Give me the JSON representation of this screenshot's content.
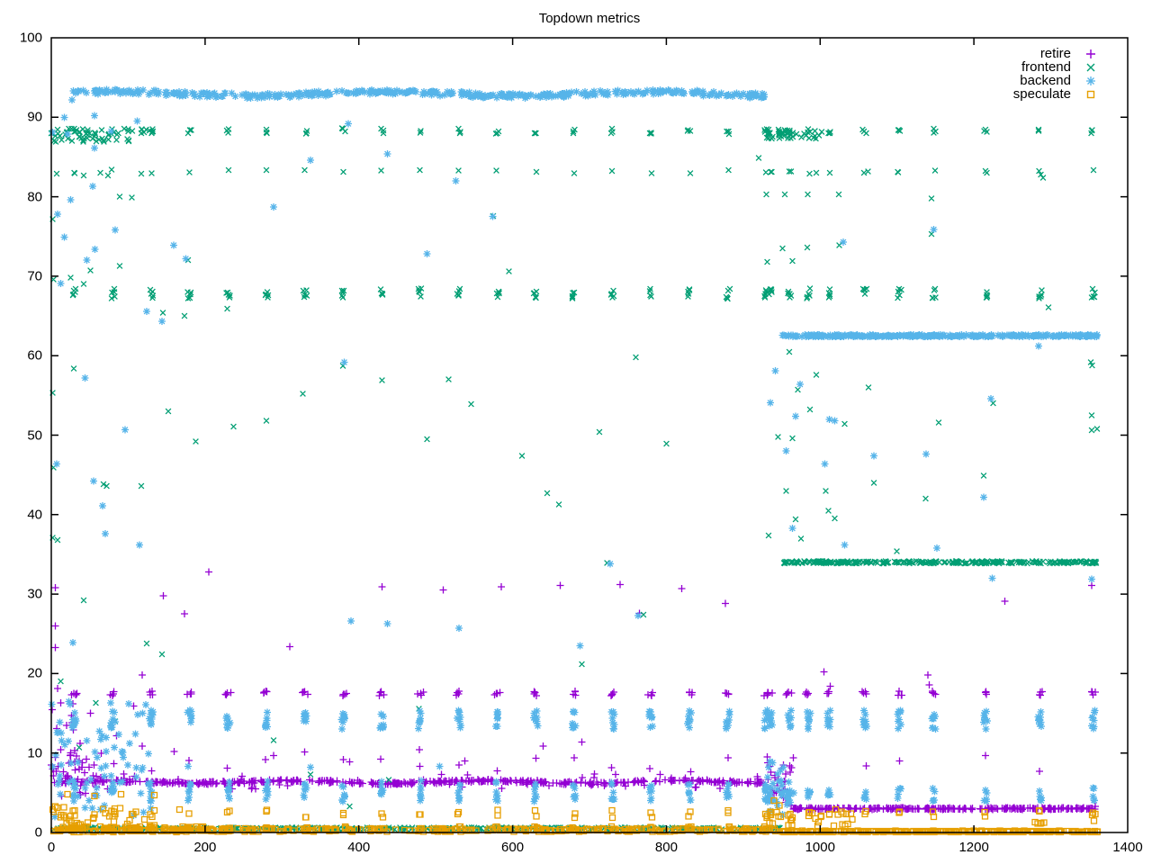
{
  "title": "Topdown metrics",
  "chart_data": {
    "type": "scatter",
    "title": "Topdown metrics",
    "xlabel": "",
    "ylabel": "",
    "xlim": [
      0,
      1400
    ],
    "ylim": [
      0,
      100
    ],
    "xticks": [
      0,
      200,
      400,
      600,
      800,
      1000,
      1200,
      1400
    ],
    "yticks": [
      0,
      10,
      20,
      30,
      40,
      50,
      60,
      70,
      80,
      90,
      100
    ],
    "grid": false,
    "legend_position": "top-right-inside",
    "border_color": "#000000",
    "phase_change_x": 935,
    "series": [
      {
        "name": "retire",
        "color": "#9400d3",
        "marker": "plus"
      },
      {
        "name": "frontend",
        "color": "#009e73",
        "marker": "cross"
      },
      {
        "name": "backend",
        "color": "#56b4e9",
        "marker": "asterisk"
      },
      {
        "name": "speculate",
        "color": "#e69f00",
        "marker": "open-square"
      }
    ],
    "cluster_x_left": [
      30,
      80,
      130,
      180,
      230,
      280,
      330,
      380,
      430,
      480,
      530,
      580,
      630,
      680,
      730,
      780,
      830,
      880,
      930
    ],
    "cluster_x_right": [
      935,
      960,
      985,
      1012,
      1058,
      1103,
      1148,
      1215,
      1286,
      1355
    ],
    "bands": [
      {
        "series": "backend",
        "x0": 27,
        "x1": 930,
        "y": 92.95,
        "jitter": 0.3,
        "wobble_amp": 0.25,
        "wobble_period": 55,
        "n": 460,
        "gap": 2
      },
      {
        "series": "backend",
        "x0": 950,
        "x1": 1362,
        "y": 62.5,
        "jitter": 0.12,
        "wobble_amp": 0,
        "wobble_period": 1,
        "n": 300,
        "gap": 0
      },
      {
        "series": "frontend",
        "x0": 952,
        "x1": 1362,
        "y": 34.0,
        "jitter": 0.14,
        "wobble_amp": 0,
        "wobble_period": 1,
        "n": 290,
        "gap": 0
      },
      {
        "series": "frontend",
        "x0": 2,
        "x1": 948,
        "y": 0.5,
        "jitter": 0.13,
        "wobble_amp": 0,
        "wobble_period": 1,
        "n": 430,
        "gap": 0
      },
      {
        "series": "retire",
        "x0": 2,
        "x1": 932,
        "y": 6.35,
        "jitter": 0.17,
        "wobble_amp": 0.15,
        "wobble_period": 40,
        "n": 470,
        "gap": 2
      },
      {
        "series": "retire",
        "x0": 963,
        "x1": 1358,
        "y": 3.0,
        "jitter": 0.1,
        "wobble_amp": 0,
        "wobble_period": 1,
        "n": 280,
        "gap": 0
      },
      {
        "series": "speculate",
        "x0": 2,
        "x1": 948,
        "y": 0.3,
        "jitter": 0.2,
        "wobble_amp": 0,
        "wobble_period": 1,
        "n": 330,
        "gap": 0
      },
      {
        "series": "speculate",
        "x0": 950,
        "x1": 1362,
        "y": 0.13,
        "jitter": 0.08,
        "wobble_amp": 0,
        "wobble_period": 1,
        "n": 300,
        "gap": 0
      }
    ],
    "dense_regions": [
      {
        "series": "frontend",
        "x0": 0,
        "x1": 104,
        "y0": 86.9,
        "y1": 88.6,
        "n": 55
      },
      {
        "series": "frontend",
        "x0": 104,
        "x1": 135,
        "y0": 87.9,
        "y1": 88.5,
        "n": 8
      },
      {
        "series": "retire",
        "x0": 0,
        "x1": 65,
        "y0": 4.6,
        "y1": 10.5,
        "n": 40
      },
      {
        "series": "retire",
        "x0": 0,
        "x1": 40,
        "y0": 10.5,
        "y1": 17.5,
        "n": 8
      },
      {
        "series": "retire",
        "x0": 0,
        "x1": 930,
        "y0": 5.4,
        "y1": 7.4,
        "n": 55
      },
      {
        "series": "backend",
        "x0": 0,
        "x1": 130,
        "y0": 1.8,
        "y1": 16.5,
        "n": 75
      },
      {
        "series": "speculate",
        "x0": 0,
        "x1": 135,
        "y0": 0.7,
        "y1": 3.2,
        "n": 40
      },
      {
        "series": "speculate",
        "x0": 0,
        "x1": 210,
        "y0": 0.05,
        "y1": 0.75,
        "n": 70
      },
      {
        "series": "retire",
        "x0": 930,
        "x1": 963,
        "y0": 3.4,
        "y1": 8.6,
        "n": 22
      },
      {
        "series": "backend",
        "x0": 928,
        "x1": 968,
        "y0": 2.0,
        "y1": 9.0,
        "n": 36
      },
      {
        "series": "speculate",
        "x0": 930,
        "x1": 1042,
        "y0": 0.8,
        "y1": 2.6,
        "n": 26
      },
      {
        "series": "speculate",
        "x0": 1278,
        "x1": 1292,
        "y0": 1.0,
        "y1": 1.3,
        "n": 6
      },
      {
        "series": "frontend",
        "x0": 928,
        "x1": 1002,
        "y0": 87.3,
        "y1": 88.5,
        "n": 38
      }
    ],
    "cluster_specs": [
      {
        "series": "retire",
        "y": 17.5,
        "yr": 0.3,
        "xr": 4,
        "n": 4,
        "where": "both"
      },
      {
        "series": "retire",
        "y": 8.9,
        "yr": 1.3,
        "xr": 2,
        "n": 1,
        "where": "left"
      },
      {
        "series": "backend",
        "y": 14.2,
        "yr": 1.2,
        "xr": 2.5,
        "n": 8,
        "where": "both"
      },
      {
        "series": "backend",
        "y": 4.8,
        "yr": 0.9,
        "xr": 2,
        "n": 5,
        "where": "both"
      },
      {
        "series": "backend",
        "y": 6.1,
        "yr": 0.4,
        "xr": 2,
        "n": 2,
        "where": "left"
      },
      {
        "series": "speculate",
        "y": 2.35,
        "yr": 0.5,
        "xr": 1.5,
        "n": 2,
        "where": "both"
      },
      {
        "series": "speculate",
        "y": 0.55,
        "yr": 0.2,
        "xr": 3,
        "n": 3,
        "where": "left"
      },
      {
        "series": "frontend",
        "y": 88.25,
        "yr": 0.35,
        "xr": 2.5,
        "n": 3,
        "where": "both"
      },
      {
        "series": "frontend",
        "y": 83.15,
        "yr": 0.25,
        "xr": 1.5,
        "n": 1,
        "where": "both"
      },
      {
        "series": "frontend",
        "y": 67.8,
        "yr": 0.65,
        "xr": 2.5,
        "n": 5,
        "where": "both"
      }
    ],
    "outliers": {
      "retire": [
        [
          5,
          30.8
        ],
        [
          5,
          26.0
        ],
        [
          5,
          23.3
        ],
        [
          8,
          18.1
        ],
        [
          12,
          16.3
        ],
        [
          28,
          16.2
        ],
        [
          51,
          15.0
        ],
        [
          107,
          15.9
        ],
        [
          85,
          12.2
        ],
        [
          118,
          19.8
        ],
        [
          146,
          29.8
        ],
        [
          173,
          27.5
        ],
        [
          205,
          32.8
        ],
        [
          310,
          23.4
        ],
        [
          430,
          30.9
        ],
        [
          510,
          30.5
        ],
        [
          585,
          30.9
        ],
        [
          662,
          31.1
        ],
        [
          740,
          31.2
        ],
        [
          820,
          30.7
        ],
        [
          765,
          27.6
        ],
        [
          877,
          28.8
        ],
        [
          479,
          10.4
        ],
        [
          289,
          9.7
        ],
        [
          388,
          8.9
        ],
        [
          538,
          9.0
        ],
        [
          640,
          10.9
        ],
        [
          690,
          11.4
        ],
        [
          118,
          10.9
        ],
        [
          12,
          10.4
        ],
        [
          23,
          8.7
        ],
        [
          36,
          8.0
        ],
        [
          160,
          10.2
        ],
        [
          1005,
          20.2
        ],
        [
          1013,
          18.4
        ],
        [
          1140,
          19.8
        ],
        [
          1142,
          18.6
        ],
        [
          1060,
          8.4
        ],
        [
          1285,
          7.7
        ],
        [
          1353,
          31.1
        ],
        [
          1103,
          9.0
        ],
        [
          965,
          9.4
        ],
        [
          1215,
          9.7
        ],
        [
          932,
          8.8
        ],
        [
          936,
          7.6
        ],
        [
          941,
          6.9
        ],
        [
          944,
          5.9
        ],
        [
          947,
          5.2
        ],
        [
          952,
          4.4
        ],
        [
          955,
          3.8
        ],
        [
          962,
          3.4
        ],
        [
          1240,
          29.1
        ],
        [
          1358,
          3.3
        ]
      ],
      "frontend": [
        [
          2,
          77.2
        ],
        [
          3,
          69.6
        ],
        [
          2,
          55.3
        ],
        [
          3,
          45.9
        ],
        [
          2,
          37.1
        ],
        [
          25,
          69.8
        ],
        [
          42,
          69.0
        ],
        [
          51,
          70.7
        ],
        [
          89,
          71.3
        ],
        [
          178,
          72.0
        ],
        [
          8,
          36.8
        ],
        [
          12,
          19.0
        ],
        [
          42,
          29.2
        ],
        [
          124,
          23.8
        ],
        [
          144,
          22.4
        ],
        [
          29,
          58.4
        ],
        [
          68,
          43.8
        ],
        [
          72,
          43.6
        ],
        [
          117,
          43.6
        ],
        [
          152,
          53.0
        ],
        [
          188,
          49.2
        ],
        [
          237,
          51.1
        ],
        [
          280,
          51.8
        ],
        [
          327,
          55.2
        ],
        [
          379,
          58.7
        ],
        [
          229,
          65.9
        ],
        [
          145,
          65.4
        ],
        [
          173,
          65.0
        ],
        [
          7,
          82.9
        ],
        [
          30,
          83.0
        ],
        [
          42,
          82.7
        ],
        [
          64,
          83.0
        ],
        [
          74,
          82.7
        ],
        [
          117,
          82.9
        ],
        [
          89,
          80.0
        ],
        [
          105,
          79.9
        ],
        [
          289,
          11.6
        ],
        [
          337,
          7.3
        ],
        [
          388,
          3.3
        ],
        [
          439,
          6.6
        ],
        [
          478,
          15.6
        ],
        [
          430,
          56.9
        ],
        [
          489,
          49.5
        ],
        [
          517,
          57.0
        ],
        [
          546,
          53.9
        ],
        [
          575,
          77.6
        ],
        [
          595,
          70.6
        ],
        [
          612,
          47.4
        ],
        [
          645,
          42.7
        ],
        [
          660,
          41.3
        ],
        [
          690,
          21.2
        ],
        [
          713,
          50.4
        ],
        [
          723,
          33.9
        ],
        [
          760,
          59.8
        ],
        [
          800,
          48.9
        ],
        [
          770,
          27.4
        ],
        [
          58,
          16.3
        ],
        [
          83,
          14.0
        ],
        [
          36,
          10.7
        ],
        [
          960,
          60.5
        ],
        [
          995,
          57.6
        ],
        [
          971,
          55.7
        ],
        [
          987,
          53.2
        ],
        [
          1032,
          51.4
        ],
        [
          945,
          49.8
        ],
        [
          964,
          49.6
        ],
        [
          956,
          43.0
        ],
        [
          1007,
          43.0
        ],
        [
          1011,
          40.5
        ],
        [
          1019,
          39.5
        ],
        [
          968,
          39.4
        ],
        [
          975,
          37.0
        ],
        [
          933,
          37.4
        ],
        [
          1063,
          56.0
        ],
        [
          1070,
          44.0
        ],
        [
          1100,
          35.4
        ],
        [
          1137,
          42.0
        ],
        [
          1154,
          51.6
        ],
        [
          1213,
          44.9
        ],
        [
          1225,
          54.0
        ],
        [
          1353,
          52.5
        ],
        [
          1353,
          50.6
        ],
        [
          1354,
          58.8
        ],
        [
          1297,
          66.1
        ],
        [
          1352,
          59.2
        ],
        [
          1360,
          50.8
        ],
        [
          931,
          71.8
        ],
        [
          951,
          73.5
        ],
        [
          983,
          73.6
        ],
        [
          1025,
          73.9
        ],
        [
          1145,
          75.3
        ],
        [
          964,
          71.9
        ],
        [
          930,
          80.3
        ],
        [
          954,
          80.3
        ],
        [
          984,
          80.3
        ],
        [
          1024,
          80.3
        ],
        [
          1145,
          79.8
        ],
        [
          937,
          83.1
        ],
        [
          962,
          83.2
        ],
        [
          995,
          83.0
        ],
        [
          1062,
          83.2
        ],
        [
          1101,
          83.1
        ],
        [
          1217,
          83.0
        ],
        [
          1287,
          82.8
        ],
        [
          1290,
          82.4
        ],
        [
          920,
          84.9
        ]
      ],
      "backend": [
        [
          2,
          88.1
        ],
        [
          17,
          90.0
        ],
        [
          21,
          87.9
        ],
        [
          56,
          86.1
        ],
        [
          78,
          88.2
        ],
        [
          112,
          89.5
        ],
        [
          25,
          79.6
        ],
        [
          54,
          81.3
        ],
        [
          8,
          77.8
        ],
        [
          12,
          69.1
        ],
        [
          46,
          72.0
        ],
        [
          57,
          73.4
        ],
        [
          17,
          74.9
        ],
        [
          83,
          75.8
        ],
        [
          159,
          73.9
        ],
        [
          175,
          72.2
        ],
        [
          44,
          57.2
        ],
        [
          96,
          50.7
        ],
        [
          7,
          46.4
        ],
        [
          67,
          41.1
        ],
        [
          55,
          44.2
        ],
        [
          70,
          37.6
        ],
        [
          115,
          36.2
        ],
        [
          28,
          23.9
        ],
        [
          124,
          65.6
        ],
        [
          144,
          64.3
        ],
        [
          289,
          78.7
        ],
        [
          386,
          89.2
        ],
        [
          337,
          84.6
        ],
        [
          437,
          85.4
        ],
        [
          526,
          82.0
        ],
        [
          574,
          77.5
        ],
        [
          489,
          72.8
        ],
        [
          390,
          26.6
        ],
        [
          437,
          26.3
        ],
        [
          530,
          25.7
        ],
        [
          688,
          23.5
        ],
        [
          727,
          33.8
        ],
        [
          763,
          27.3
        ],
        [
          381,
          59.2
        ],
        [
          27,
          92.2
        ],
        [
          56,
          90.2
        ],
        [
          178,
          8.3
        ],
        [
          337,
          8.2
        ],
        [
          505,
          8.3
        ],
        [
          942,
          58.1
        ],
        [
          974,
          56.4
        ],
        [
          935,
          54.1
        ],
        [
          968,
          52.4
        ],
        [
          1012,
          52.0
        ],
        [
          1019,
          51.8
        ],
        [
          956,
          48.0
        ],
        [
          1006,
          46.4
        ],
        [
          1070,
          47.4
        ],
        [
          1138,
          47.6
        ],
        [
          964,
          38.3
        ],
        [
          1032,
          36.2
        ],
        [
          1152,
          35.8
        ],
        [
          1213,
          42.2
        ],
        [
          1224,
          32.0
        ],
        [
          1353,
          31.9
        ],
        [
          1284,
          61.2
        ],
        [
          1030,
          74.3
        ],
        [
          1148,
          75.9
        ],
        [
          1222,
          54.6
        ]
      ],
      "speculate": [
        [
          21,
          4.8
        ],
        [
          56,
          4.6
        ],
        [
          91,
          4.8
        ],
        [
          134,
          4.7
        ],
        [
          5,
          3.3
        ],
        [
          167,
          2.9
        ],
        [
          940,
          4.0
        ],
        [
          947,
          3.4
        ],
        [
          935,
          2.6
        ],
        [
          1020,
          2.9
        ],
        [
          1028,
          2.6
        ],
        [
          1358,
          2.3
        ],
        [
          1356,
          1.5
        ],
        [
          998,
          1.3
        ],
        [
          1040,
          2.4
        ]
      ]
    },
    "render": {
      "seed": 42
    }
  },
  "legend": {
    "entries": [
      "retire",
      "frontend",
      "backend",
      "speculate"
    ]
  }
}
